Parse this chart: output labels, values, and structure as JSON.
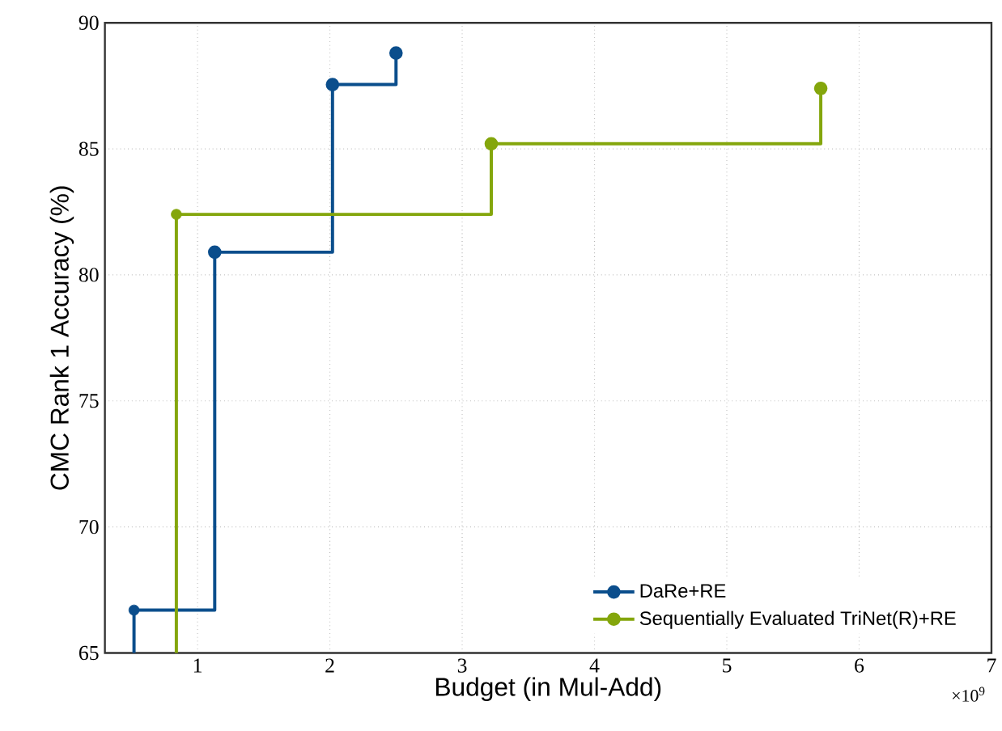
{
  "chart_data": {
    "type": "step",
    "xlabel": "Budget (in Mul-Add)",
    "ylabel": "CMC Rank 1 Accuracy (%)",
    "annotations": [
      "×10$^{9}$"
    ],
    "xlim": [
      0.3,
      7
    ],
    "xticks": [
      1,
      2,
      3,
      4,
      5,
      6,
      7
    ],
    "ylim": [
      65,
      90
    ],
    "yticks": [
      65,
      70,
      75,
      80,
      85,
      90
    ],
    "grid": true,
    "legend": "bottom right",
    "marker": "circle",
    "line_style": "solid",
    "series": [
      {
        "name": "DaRe+RE",
        "color": "#0b4e8c",
        "x": [
          0.52,
          1.13,
          2.02,
          2.5
        ],
        "values": [
          66.7,
          80.9,
          87.55,
          88.8
        ]
      },
      {
        "name": "Sequentially Evaluated TriNet(R)+RE",
        "color": "#84a60c",
        "x": [
          0.84,
          3.22,
          5.71
        ],
        "values": [
          82.4,
          85.2,
          87.4
        ]
      }
    ]
  }
}
